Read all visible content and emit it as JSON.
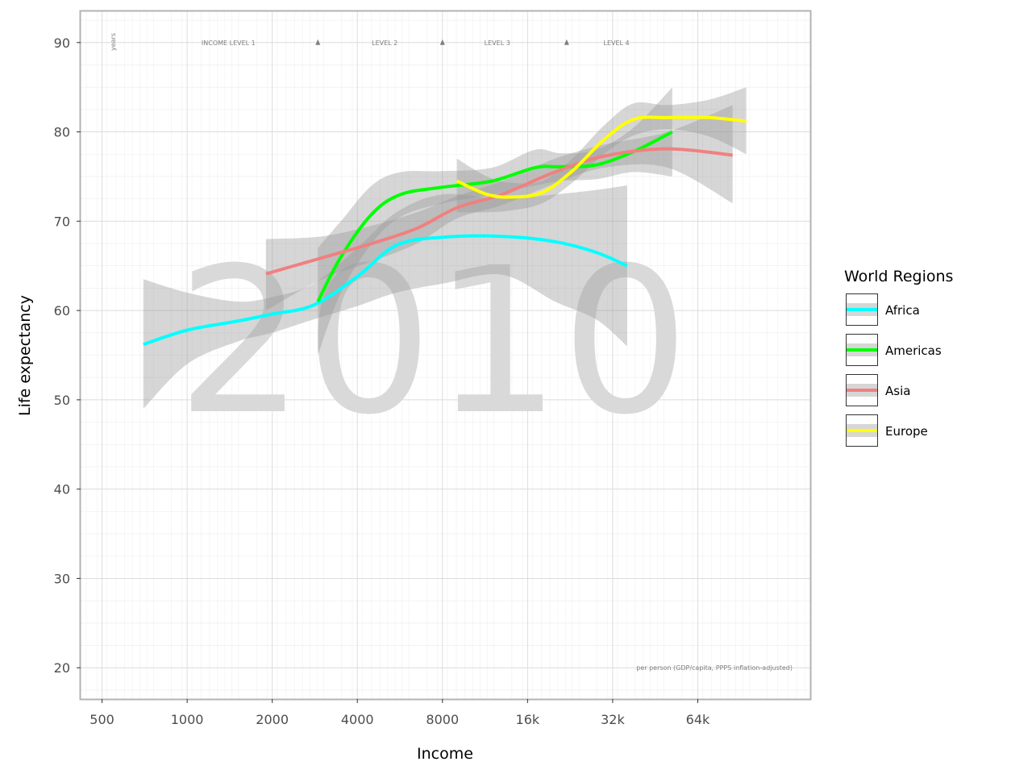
{
  "chart_data": {
    "type": "line",
    "title": "",
    "xlabel": "Income",
    "ylabel": "Life expectancy",
    "x_scale": "log2",
    "xlim": [
      420,
      160000
    ],
    "ylim": [
      16.5,
      93.5
    ],
    "x_ticks": [
      {
        "value": 500,
        "label": "500"
      },
      {
        "value": 1000,
        "label": "1000"
      },
      {
        "value": 2000,
        "label": "2000"
      },
      {
        "value": 4000,
        "label": "4000"
      },
      {
        "value": 8000,
        "label": "8000"
      },
      {
        "value": 16000,
        "label": "16k"
      },
      {
        "value": 32000,
        "label": "32k"
      },
      {
        "value": 64000,
        "label": "64k"
      }
    ],
    "y_ticks": [
      20,
      30,
      40,
      50,
      60,
      70,
      80,
      90
    ],
    "grid": true,
    "legend": {
      "title": "World Regions",
      "placement": "right"
    },
    "watermark": "2010",
    "annotations": {
      "y_unit": "years",
      "income_levels": [
        "INCOME LEVEL 1",
        "LEVEL 2",
        "LEVEL 3",
        "LEVEL 4"
      ],
      "x_note": "per person (GDP/capita, PPPS inflation-adjusted)"
    },
    "level_markers_x": [
      2900,
      8000,
      22000
    ],
    "level_label_x": [
      1400,
      5000,
      12500,
      33000
    ],
    "series": [
      {
        "name": "Africa",
        "color": "#00ffff",
        "x": [
          700,
          1000,
          1500,
          2000,
          2800,
          4000,
          5500,
          8000,
          13000,
          20000,
          28000,
          36000
        ],
        "y": [
          56.2,
          57.8,
          58.8,
          59.6,
          60.6,
          63.8,
          67.3,
          68.2,
          68.3,
          67.7,
          66.5,
          65
        ],
        "band_lower": [
          49,
          54,
          56.5,
          57.5,
          59,
          60.5,
          62,
          63,
          64,
          61,
          59,
          56
        ],
        "band_upper": [
          63.5,
          62,
          61,
          61.5,
          63,
          67,
          71,
          73,
          72.5,
          73,
          73.5,
          74
        ]
      },
      {
        "name": "Americas",
        "color": "#00ff00",
        "x": [
          2900,
          3500,
          4500,
          5700,
          8000,
          12000,
          17000,
          21000,
          28000,
          38000,
          52000
        ],
        "y": [
          61,
          66,
          70.8,
          73,
          73.8,
          74.5,
          76,
          76.1,
          76.3,
          77.8,
          80
        ],
        "band_lower": [
          55,
          62,
          67.5,
          70.5,
          72,
          73,
          74,
          74.5,
          74.7,
          75.5,
          75
        ],
        "band_upper": [
          67,
          70,
          74,
          75.5,
          75.6,
          76,
          78,
          77.6,
          78,
          80.5,
          85
        ]
      },
      {
        "name": "Asia",
        "color": "#f08080",
        "x": [
          1900,
          3000,
          4500,
          6500,
          9000,
          13000,
          20000,
          30000,
          50000,
          85000
        ],
        "y": [
          64.1,
          65.9,
          67.5,
          69.2,
          71.5,
          73,
          75.5,
          77.3,
          78.1,
          77.4
        ],
        "band_lower": [
          60,
          63.5,
          65.5,
          67.5,
          70.3,
          71.8,
          74.2,
          76,
          76,
          72
        ],
        "band_upper": [
          68,
          68.3,
          69.5,
          71,
          72.8,
          74.5,
          77,
          78.6,
          80,
          83
        ]
      },
      {
        "name": "Europe",
        "color": "#ffff00",
        "x": [
          9000,
          11500,
          14000,
          18000,
          23000,
          30000,
          38000,
          50000,
          70000,
          95000
        ],
        "y": [
          74.5,
          73,
          72.7,
          73.2,
          75.6,
          79.2,
          81.4,
          81.6,
          81.6,
          81.2
        ],
        "band_lower": [
          71,
          71,
          71.2,
          72,
          74.3,
          77.6,
          79.6,
          80.3,
          79.5,
          77.5
        ],
        "band_upper": [
          77,
          75,
          74.3,
          74.5,
          77,
          80.8,
          83.2,
          83,
          83.6,
          85
        ]
      }
    ]
  }
}
